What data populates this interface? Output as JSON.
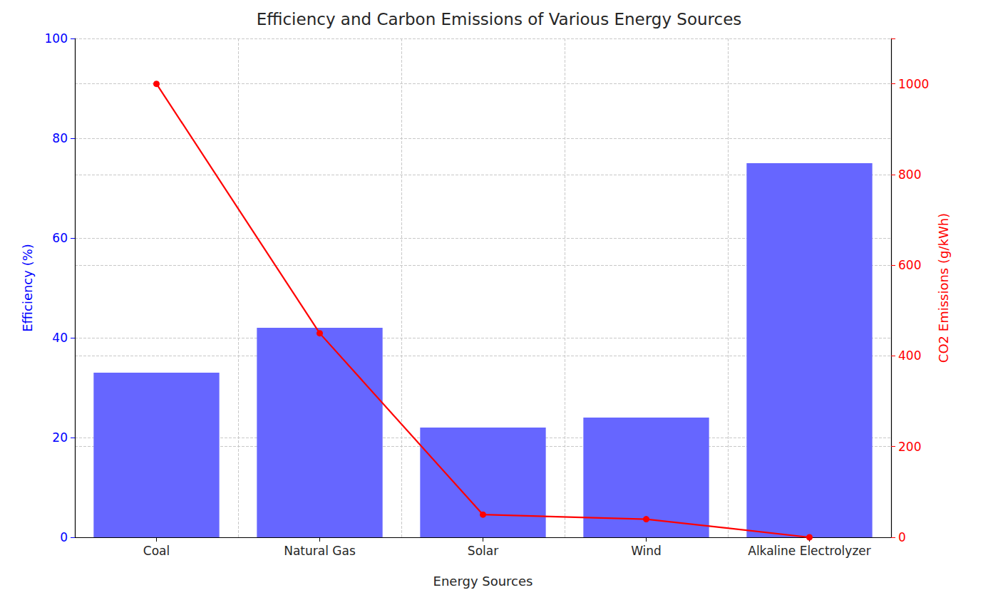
{
  "chart_data": {
    "type": "bar",
    "title": "Efficiency and Carbon Emissions of Various Energy Sources",
    "xlabel": "Energy Sources",
    "ylabel": "Efficiency (%)",
    "y2label": "CO2 Emissions (g/kWh)",
    "categories": [
      "Coal",
      "Natural Gas",
      "Solar",
      "Wind",
      "Alkaline Electrolyzer"
    ],
    "series": [
      {
        "type": "bar",
        "color": "#6666ff",
        "values": [
          33,
          42,
          22,
          24,
          75
        ]
      },
      {
        "type": "line",
        "axis": "y2",
        "color": "#ff0000",
        "marker": "o",
        "line_style": "solid",
        "values": [
          1000,
          450,
          50,
          40,
          0
        ]
      }
    ],
    "ylim": [
      0,
      100
    ],
    "yticks": [
      0,
      20,
      40,
      60,
      80,
      100
    ],
    "y2lim": [
      0,
      1100
    ],
    "y2ticks": [
      0,
      200,
      400,
      600,
      800,
      1000
    ],
    "grid": true
  }
}
